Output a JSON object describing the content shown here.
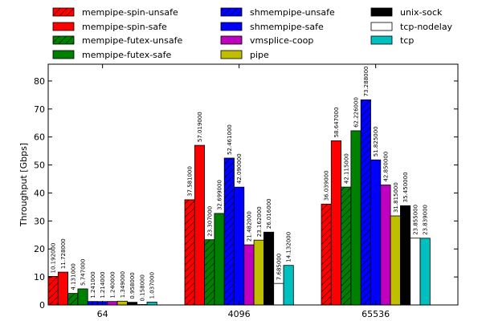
{
  "chart_data": {
    "type": "bar",
    "categories": [
      "64",
      "4096",
      "65536"
    ],
    "xlabel": "",
    "ylabel": "Throughput [Gbps]",
    "ylim": [
      0,
      86
    ],
    "yticks": [
      0,
      10,
      20,
      30,
      40,
      50,
      60,
      70,
      80
    ],
    "grid": false,
    "legend_position": "top",
    "series": [
      {
        "name": "mempipe-spin-unsafe",
        "color": "#ff0000",
        "hatched": true,
        "values": [
          10.192,
          37.581,
          36.039
        ],
        "labels": [
          "10.192000",
          "37.581000",
          "36.039000"
        ]
      },
      {
        "name": "mempipe-spin-safe",
        "color": "#ff0000",
        "hatched": false,
        "values": [
          11.728,
          57.019,
          58.647
        ],
        "labels": [
          "11.728000",
          "57.019000",
          "58.647000"
        ]
      },
      {
        "name": "mempipe-futex-unsafe",
        "color": "#008000",
        "hatched": true,
        "values": [
          4.131,
          23.307,
          42.115
        ],
        "labels": [
          "4.131000",
          "23.307000",
          "42.115000"
        ]
      },
      {
        "name": "mempipe-futex-safe",
        "color": "#008000",
        "hatched": false,
        "values": [
          5.747,
          32.699,
          62.226
        ],
        "labels": [
          "5.747000",
          "32.699000",
          "62.226000"
        ]
      },
      {
        "name": "shmempipe-unsafe",
        "color": "#0000ff",
        "hatched": true,
        "values": [
          1.241,
          52.461,
          73.288
        ],
        "labels": [
          "1.241000",
          "52.461000",
          "73.288000"
        ]
      },
      {
        "name": "shmempipe-safe",
        "color": "#0000ff",
        "hatched": false,
        "values": [
          1.214,
          42.09,
          51.825
        ],
        "labels": [
          "1.214000",
          "42.090000",
          "51.825000"
        ]
      },
      {
        "name": "vmsplice-coop",
        "color": "#bf00bf",
        "hatched": false,
        "values": [
          1.24,
          21.482,
          42.85
        ],
        "labels": [
          "1.240000",
          "21.482000",
          "42.850000"
        ]
      },
      {
        "name": "pipe",
        "color": "#bfbf00",
        "hatched": false,
        "values": [
          1.349,
          23.162,
          31.815
        ],
        "labels": [
          "1.349000",
          "23.162000",
          "31.815000"
        ]
      },
      {
        "name": "unix-sock",
        "color": "#000000",
        "hatched": false,
        "values": [
          0.958,
          26.016,
          35.45
        ],
        "labels": [
          "0.958000",
          "26.016000",
          "35.450000"
        ]
      },
      {
        "name": "tcp-nodelay",
        "color": "#ffffff",
        "hatched": false,
        "values": [
          0.158,
          7.685,
          23.855
        ],
        "labels": [
          "0.158000",
          "7.685000",
          "23.855000"
        ]
      },
      {
        "name": "tcp",
        "color": "#00bfbf",
        "hatched": false,
        "values": [
          1.037,
          14.132,
          23.839
        ],
        "labels": [
          "1.037000",
          "14.132000",
          "23.839000"
        ]
      }
    ]
  }
}
